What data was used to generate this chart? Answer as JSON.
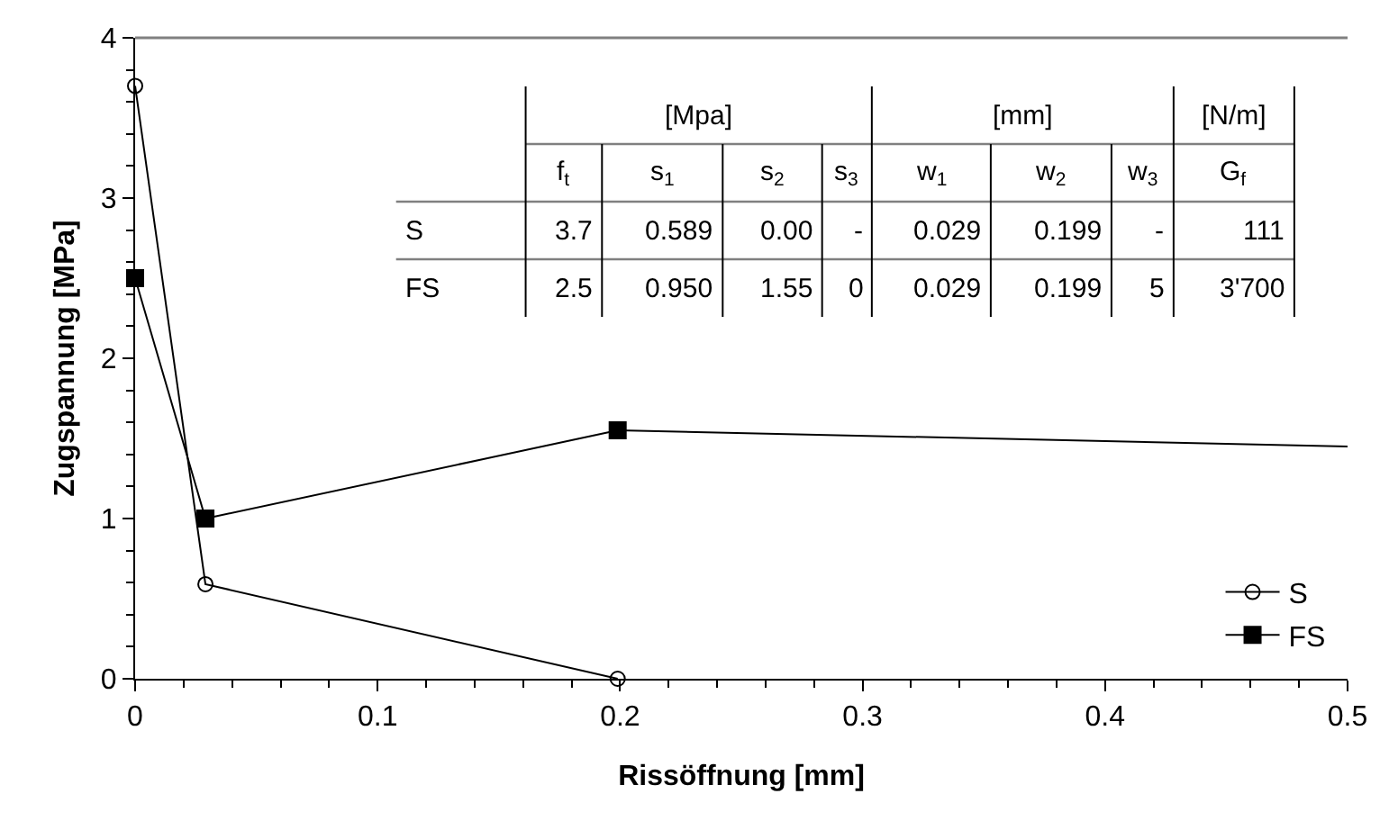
{
  "chart_data": {
    "type": "line",
    "xlabel": "Rissöffnung [mm]",
    "ylabel": "Zugspannung [MPa]",
    "xlim": [
      0,
      0.5
    ],
    "xticks": [
      0,
      0.1,
      0.2,
      0.3,
      0.4,
      0.5
    ],
    "ylim": [
      0,
      4
    ],
    "yticks": [
      0,
      1,
      2,
      3,
      4
    ],
    "grid": false,
    "legend": "bottom right",
    "series": [
      {
        "name": "S",
        "color": "#000000",
        "marker": "circle",
        "x": [
          0,
          0.029,
          0.199
        ],
        "values": [
          3.7,
          0.59,
          0
        ]
      },
      {
        "name": "FS",
        "color": "#000000",
        "marker": "square",
        "x": [
          0,
          0.029,
          0.199
        ],
        "values": [
          2.5,
          1.0,
          1.55
        ]
      },
      {
        "color": "#000000",
        "marker": "none",
        "x": [
          0.199,
          0.5
        ],
        "values": [
          1.55,
          1.45
        ]
      }
    ],
    "annotations": [
      "[Mpa]",
      "[mm]",
      "[N/m]",
      "f$_{t}$",
      "s$_{1}$",
      "s$_{2}$",
      "s$_{3}$",
      "w$_{1}$",
      "w$_{2}$",
      "w$_{3}$",
      "G$_{f}$",
      "S",
      "3.7",
      "0.589",
      "0.00",
      "-",
      "0.029",
      "0.199",
      "-",
      "111",
      "FS",
      "2.5",
      "0.950",
      "1.55",
      "0",
      "0.029",
      "0.199",
      "5",
      "3'700"
    ]
  }
}
